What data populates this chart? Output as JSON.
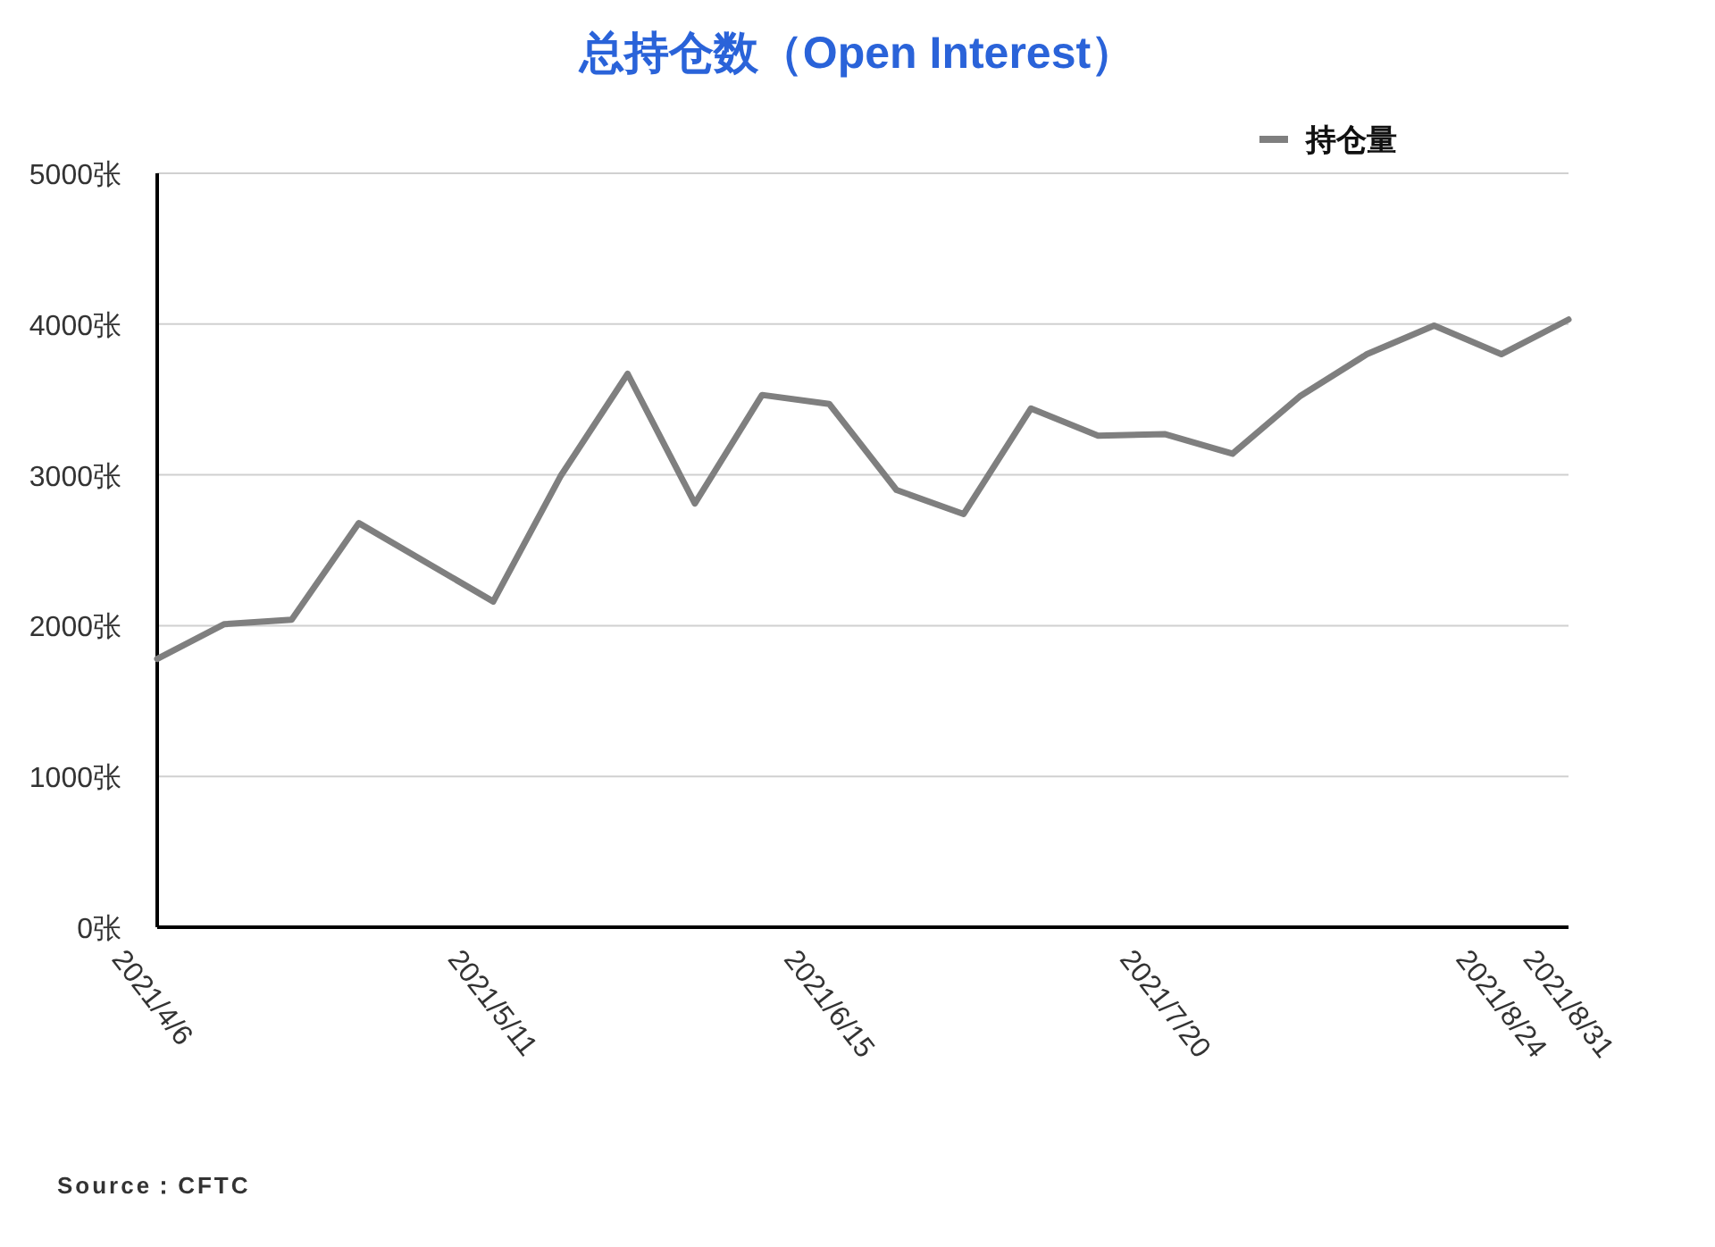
{
  "chart_data": {
    "type": "line",
    "title": "总持仓数（Open Interest）",
    "x": [
      "2021-04-06",
      "2021-04-13",
      "2021-04-20",
      "2021-04-27",
      "2021-05-04",
      "2021-05-11",
      "2021-05-18",
      "2021-05-25",
      "2021-06-01",
      "2021-06-08",
      "2021-06-15",
      "2021-06-22",
      "2021-06-29",
      "2021-07-06",
      "2021-07-13",
      "2021-07-20",
      "2021-07-27",
      "2021-08-03",
      "2021-08-10",
      "2021-08-17",
      "2021-08-24",
      "2021-08-31"
    ],
    "series": [
      {
        "name": "持仓量",
        "color": "#7f7f7f",
        "values": [
          1780,
          2010,
          2040,
          2680,
          2420,
          2160,
          2990,
          3670,
          2810,
          3530,
          3470,
          2900,
          2740,
          3440,
          3260,
          3270,
          3140,
          3520,
          3800,
          3990,
          3800,
          4030
        ]
      }
    ],
    "xlim": [
      "2021-04-06",
      "2021-08-31"
    ],
    "xticks": [
      {
        "value": "2021-04-06",
        "label": "2021/4/6"
      },
      {
        "value": "2021-05-11",
        "label": "2021/5/11"
      },
      {
        "value": "2021-06-15",
        "label": "2021/6/15"
      },
      {
        "value": "2021-07-20",
        "label": "2021/7/20"
      },
      {
        "value": "2021-08-24",
        "label": "2021/8/24"
      },
      {
        "value": "2021-08-31",
        "label": "2021/8/31"
      }
    ],
    "ylim": [
      0,
      5000
    ],
    "yticks": [
      {
        "value": 0,
        "label": "0张"
      },
      {
        "value": 1000,
        "label": "1000张"
      },
      {
        "value": 2000,
        "label": "2000张"
      },
      {
        "value": 3000,
        "label": "3000张"
      },
      {
        "value": 4000,
        "label": "4000张"
      },
      {
        "value": 5000,
        "label": "5000张"
      }
    ],
    "grid": "y",
    "legend": "top right",
    "marker": "none",
    "line_style": "solid",
    "annotations": [
      "Source：CFTC"
    ]
  }
}
